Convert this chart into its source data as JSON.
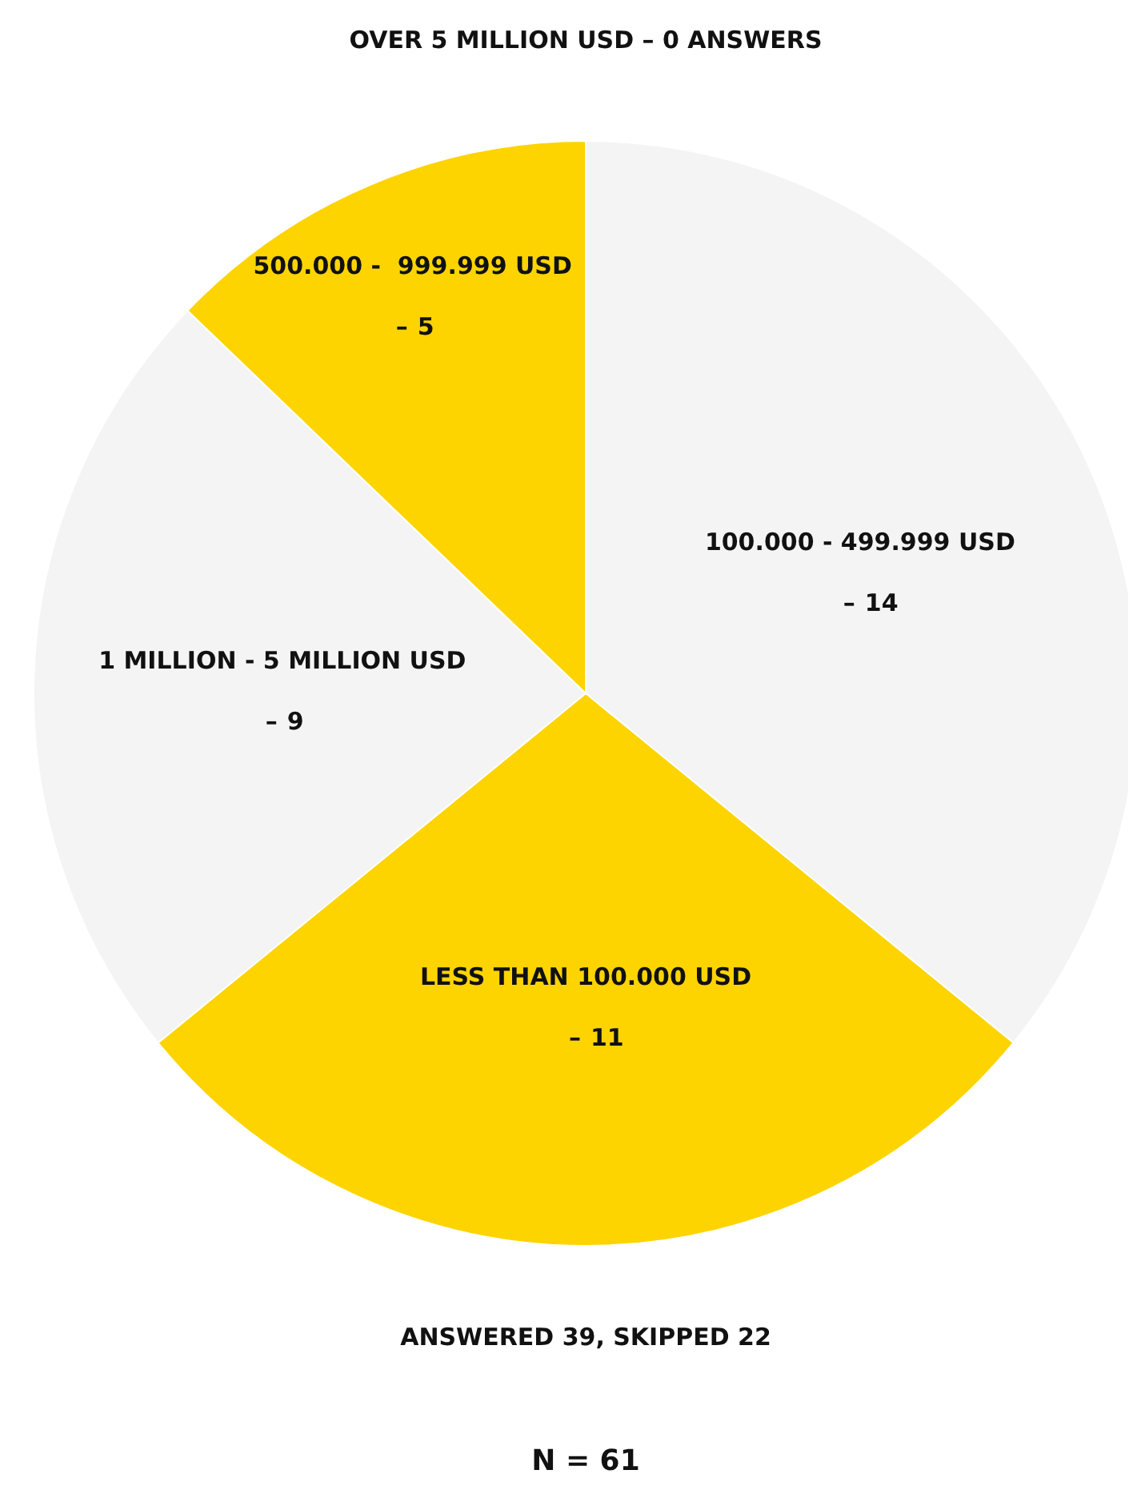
{
  "chart_data": {
    "type": "pie",
    "categories": [
      "100.000 - 499.999 USD –",
      "LESS THAN 100.000 USD –",
      "1 MILLION - 5 MILLION USD –",
      "500.000 -  999.999 USD –",
      "OVER 5 MILLION USD –"
    ],
    "values": [
      14,
      11,
      9,
      5,
      0
    ],
    "colors": [
      "#f4f4f4",
      "#fdd400",
      "#f4f4f4",
      "#fdd400",
      "#f4f4f4"
    ],
    "value_labels": [
      "14",
      "11",
      "9",
      "5",
      "0 ANSWERS"
    ],
    "annotations": [
      "ANSWERED 39, SKIPPED 22",
      "N = 61"
    ]
  }
}
